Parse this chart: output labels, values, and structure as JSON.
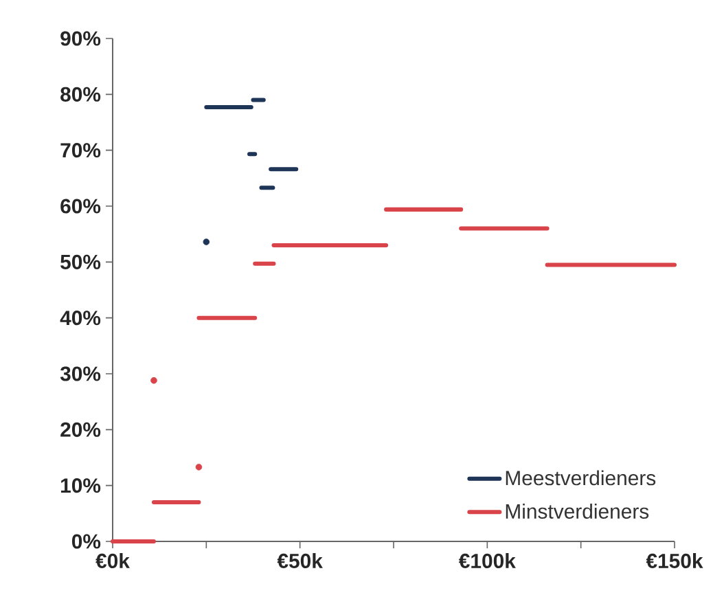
{
  "chart_data": {
    "type": "line",
    "xlim": [
      0,
      150
    ],
    "ylim": [
      0,
      90
    ],
    "xticks": [
      {
        "value": 0,
        "label": "€0k"
      },
      {
        "value": 25,
        "label": null
      },
      {
        "value": 50,
        "label": "€50k"
      },
      {
        "value": 75,
        "label": null
      },
      {
        "value": 100,
        "label": "€100k"
      },
      {
        "value": 125,
        "label": null
      },
      {
        "value": 150,
        "label": "€150k"
      }
    ],
    "yticks": [
      {
        "value": 0,
        "label": "0%"
      },
      {
        "value": 10,
        "label": "10%"
      },
      {
        "value": 20,
        "label": "20%"
      },
      {
        "value": 30,
        "label": "30%"
      },
      {
        "value": 40,
        "label": "40%"
      },
      {
        "value": 50,
        "label": "50%"
      },
      {
        "value": 60,
        "label": "60%"
      },
      {
        "value": 70,
        "label": "70%"
      },
      {
        "value": 80,
        "label": "80%"
      },
      {
        "value": 90,
        "label": "90%"
      }
    ],
    "grid": false,
    "legend": "bottom right",
    "marker": "none",
    "line_style": "solid",
    "series": [
      {
        "name": "Meestverdieners",
        "color": "#1f3557",
        "x": [
          25,
          37,
          null,
          36.5,
          38,
          null,
          37.5,
          40.3,
          null,
          39.7,
          42.8,
          null,
          42.2,
          49
        ],
        "values": [
          77.7,
          77.7,
          null,
          69.3,
          69.3,
          null,
          79,
          79,
          null,
          63.3,
          63.3,
          null,
          66.6,
          66.6
        ]
      },
      {
        "name": "Minstverdieners",
        "color": "#d9434a",
        "x": [
          0,
          11,
          null,
          11,
          23,
          null,
          23,
          38,
          null,
          38,
          43,
          null,
          43,
          73,
          null,
          73,
          93,
          null,
          93,
          116,
          null,
          116,
          150
        ],
        "values": [
          0,
          0,
          null,
          7,
          7,
          null,
          40,
          40,
          null,
          49.7,
          49.7,
          null,
          53,
          53,
          null,
          59.4,
          59.4,
          null,
          56,
          56,
          null,
          49.5,
          49.5
        ]
      },
      {
        "color": "#1f3557",
        "type": "scatter",
        "marker": "circle",
        "x": [
          25
        ],
        "values": [
          53.6
        ]
      },
      {
        "color": "#d9434a",
        "type": "scatter",
        "marker": "circle",
        "x": [
          11,
          23
        ],
        "values": [
          28.8,
          13.3
        ]
      }
    ]
  }
}
